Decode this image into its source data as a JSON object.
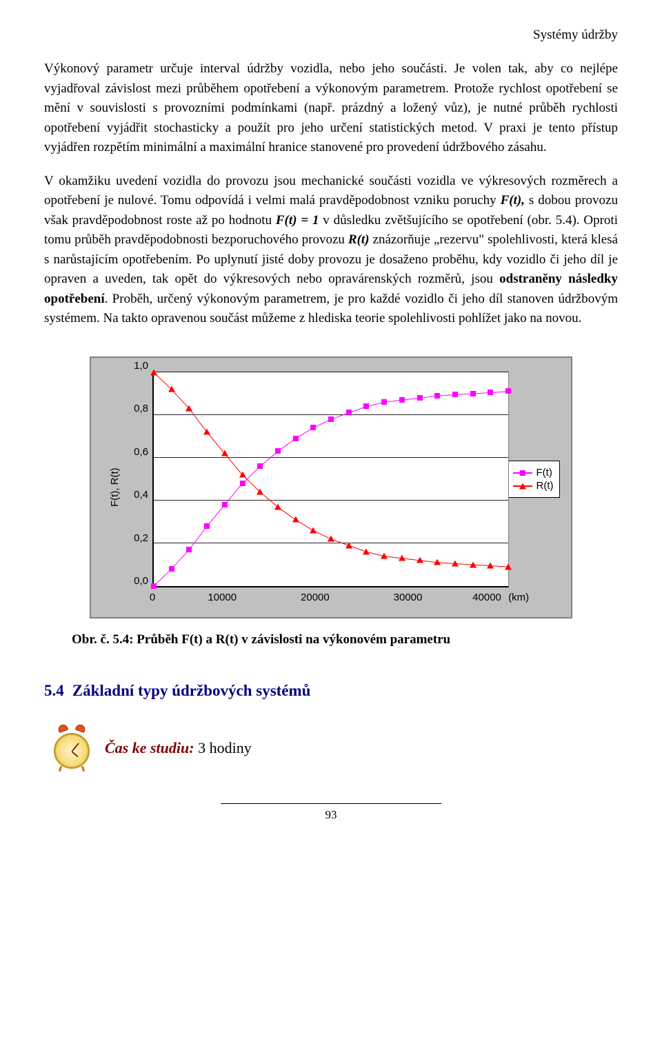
{
  "header": {
    "right": "Systémy údržby"
  },
  "paragraphs": {
    "p1_full": "Výkonový parametr určuje interval údržby vozidla, nebo jeho součásti. Je volen tak, aby co nejlépe vyjadřoval závislost mezi průběhem opotřebení a výkonovým parametrem. Protože rychlost opotřebení se mění v souvislosti s provozními podmínkami (např. prázdný a ložený vůz), je nutné průběh rychlosti opotřebení vyjádřit stochasticky a použít pro jeho určení statistických metod. V praxi je tento přístup vyjádřen rozpětím minimální a maximální hranice stanovené pro provedení údržbového zásahu.",
    "p2_a": "V okamžiku uvedení vozidla do provozu jsou mechanické součásti vozidla ve výkresových rozměrech a opotřebení je nulové. Tomu odpovídá i velmi malá pravděpodobnost vzniku poruchy ",
    "p2_b": "F(t),",
    "p2_c": " s dobou provozu však pravděpodobnost roste až po hodnotu ",
    "p2_d": "F(t) = 1",
    "p2_e": " v důsledku zvětšujícího se opotřebení (obr. 5.4). Oproti tomu průběh pravděpodobnosti bezporuchového provozu ",
    "p2_f": "R(t)",
    "p2_g": " znázorňuje „rezervu\" spolehlivosti, která klesá s narůstajícím opotřebením. Po uplynutí jisté doby provozu je dosaženo proběhu, kdy vozidlo či jeho díl je opraven a uveden, tak opět do výkresových nebo opravárenských rozměrů, jsou ",
    "p2_h": "odstraněny následky opotřebení",
    "p2_i": ". Proběh, určený výkonovým parametrem, je pro každé vozidlo či jeho díl stanoven údržbovým systémem. Na takto opravenou součást můžeme z hlediska teorie spolehlivosti pohlížet jako na novou."
  },
  "chart": {
    "type": "line",
    "ylabel": "F(t), R(t)",
    "x_unit": "(km)",
    "background_color": "#c0c0c0",
    "plot_background": "#ffffff",
    "grid_color": "#000000",
    "xlim": [
      0,
      40000
    ],
    "ylim": [
      0,
      1.0
    ],
    "xticks": [
      "0",
      "10000",
      "20000",
      "30000",
      "40000"
    ],
    "yticks": [
      "0,0",
      "0,2",
      "0,4",
      "0,6",
      "0,8",
      "1,0"
    ],
    "series": [
      {
        "name": "F(t)",
        "color": "#ff00ff",
        "marker": "square",
        "line_width": 2,
        "x": [
          0,
          2000,
          4000,
          6000,
          8000,
          10000,
          12000,
          14000,
          16000,
          18000,
          20000,
          22000,
          24000,
          26000,
          28000,
          30000,
          32000,
          34000,
          36000,
          38000,
          40000
        ],
        "y": [
          0.0,
          0.08,
          0.17,
          0.28,
          0.38,
          0.48,
          0.56,
          0.63,
          0.69,
          0.74,
          0.78,
          0.81,
          0.84,
          0.86,
          0.87,
          0.88,
          0.89,
          0.895,
          0.9,
          0.905,
          0.91
        ]
      },
      {
        "name": "R(t)",
        "color": "#ff0000",
        "marker": "triangle",
        "line_width": 2,
        "x": [
          0,
          2000,
          4000,
          6000,
          8000,
          10000,
          12000,
          14000,
          16000,
          18000,
          20000,
          22000,
          24000,
          26000,
          28000,
          30000,
          32000,
          34000,
          36000,
          38000,
          40000
        ],
        "y": [
          1.0,
          0.92,
          0.83,
          0.72,
          0.62,
          0.52,
          0.44,
          0.37,
          0.31,
          0.26,
          0.22,
          0.19,
          0.16,
          0.14,
          0.13,
          0.12,
          0.11,
          0.105,
          0.1,
          0.095,
          0.09
        ]
      }
    ],
    "legend": {
      "items": [
        {
          "label": "F(t)",
          "color": "#ff00ff",
          "marker": "square"
        },
        {
          "label": "R(t)",
          "color": "#ff0000",
          "marker": "triangle"
        }
      ]
    }
  },
  "caption": "Obr. č. 5.4:  Průběh F(t) a R(t) v závislosti na výkonovém parametru",
  "section": {
    "number": "5.4",
    "title": "Základní typy údržbových systémů",
    "color": "#000080"
  },
  "study": {
    "label": "Čas ke studiu:",
    "value": " 3 hodiny",
    "label_color": "#800000"
  },
  "footer": {
    "page": "93"
  }
}
